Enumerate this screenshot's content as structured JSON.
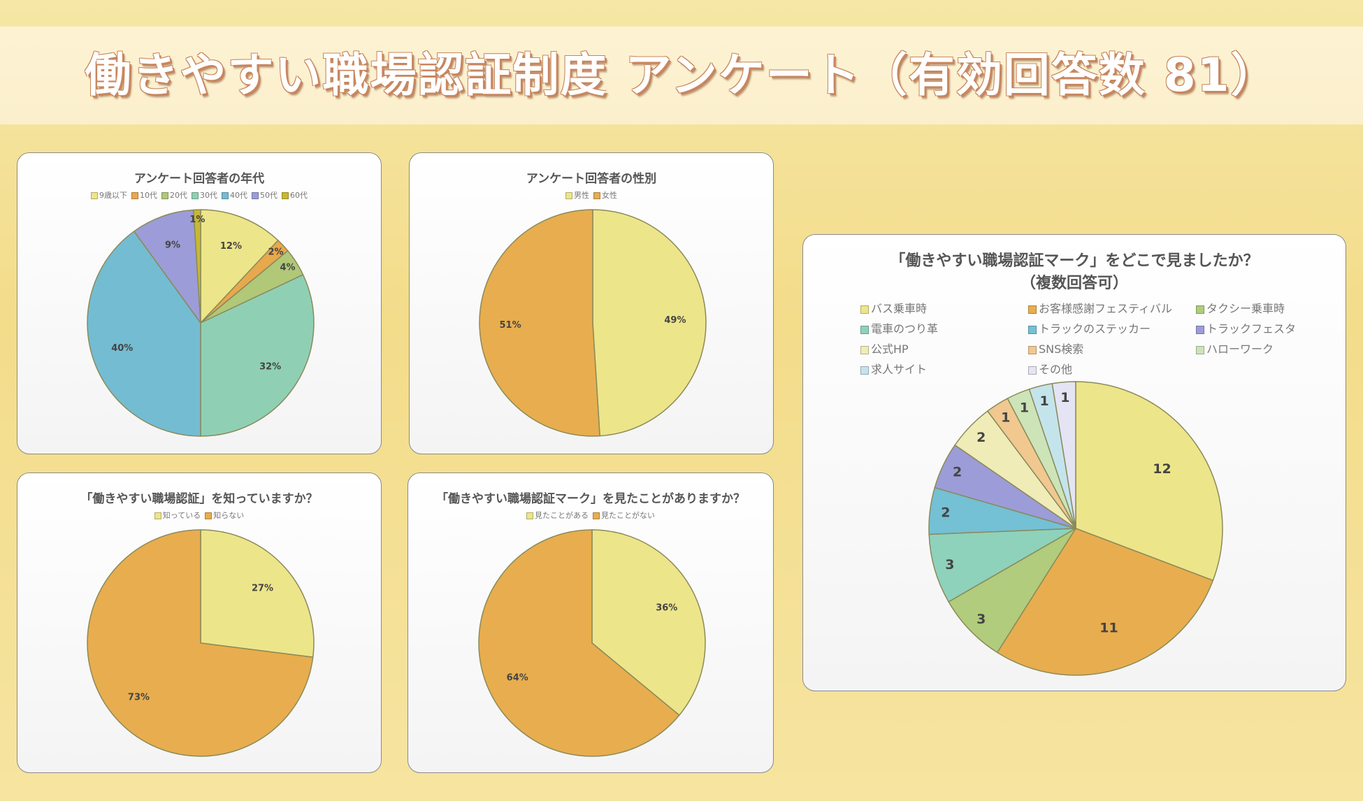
{
  "page_title": "働きやすい職場認証制度 アンケート（有効回答数 81）",
  "chart_data": [
    {
      "type": "pie",
      "title": "アンケート回答者の年代",
      "categories": [
        "9歳以下",
        "10代",
        "20代",
        "30代",
        "40代",
        "50代",
        "60代"
      ],
      "values": [
        12,
        2,
        4,
        32,
        40,
        9,
        1
      ],
      "labels": [
        "12%",
        "2%",
        "4%",
        "32%",
        "40%",
        "9%",
        "1%"
      ],
      "colors": [
        "#ede58a",
        "#e8a84c",
        "#b0c878",
        "#8fd0b4",
        "#74bcd2",
        "#9c9cd8",
        "#c8b830"
      ],
      "legend": "top"
    },
    {
      "type": "pie",
      "title": "アンケート回答者の性別",
      "categories": [
        "男性",
        "女性"
      ],
      "values": [
        49,
        51
      ],
      "labels": [
        "49%",
        "51%"
      ],
      "colors": [
        "#ede58a",
        "#e8ad4e"
      ],
      "legend": "top"
    },
    {
      "type": "pie",
      "title": "「働きやすい職場認証」を知っていますか？",
      "categories": [
        "知っている",
        "知らない"
      ],
      "values": [
        27,
        73
      ],
      "labels": [
        "27%",
        "73%"
      ],
      "colors": [
        "#ede58a",
        "#e8ad4e"
      ],
      "legend": "top"
    },
    {
      "type": "pie",
      "title": "「働きやすい職場認証マーク」を見たことがありますか？",
      "categories": [
        "見たことがある",
        "見たことがない"
      ],
      "values": [
        36,
        64
      ],
      "labels": [
        "36%",
        "64%"
      ],
      "colors": [
        "#ede58a",
        "#e8ad4e"
      ],
      "legend": "top"
    },
    {
      "type": "pie",
      "title": "「働きやすい職場認証マーク」をどこで見ましたか？",
      "subtitle": "（複数回答可）",
      "categories": [
        "バス乗車時",
        "お客様感謝フェスティバル",
        "タクシー乗車時",
        "電車のつり革",
        "トラックのステッカー",
        "トラックフェスタ",
        "公式HP",
        "SNS検索",
        "ハローワーク",
        "求人サイト",
        "その他"
      ],
      "values": [
        12,
        11,
        3,
        3,
        2,
        2,
        2,
        1,
        1,
        1,
        1
      ],
      "labels": [
        "12",
        "11",
        "3",
        "3",
        "2",
        "2",
        "2",
        "1",
        "1",
        "1",
        "1"
      ],
      "colors": [
        "#ede58a",
        "#e8ad4e",
        "#b0cc7c",
        "#8ed2bc",
        "#74c0d4",
        "#9c9cd8",
        "#f0ecb8",
        "#f0c890",
        "#cce4b8",
        "#c4e4ec",
        "#e4e4f4"
      ],
      "legend": "top"
    }
  ]
}
